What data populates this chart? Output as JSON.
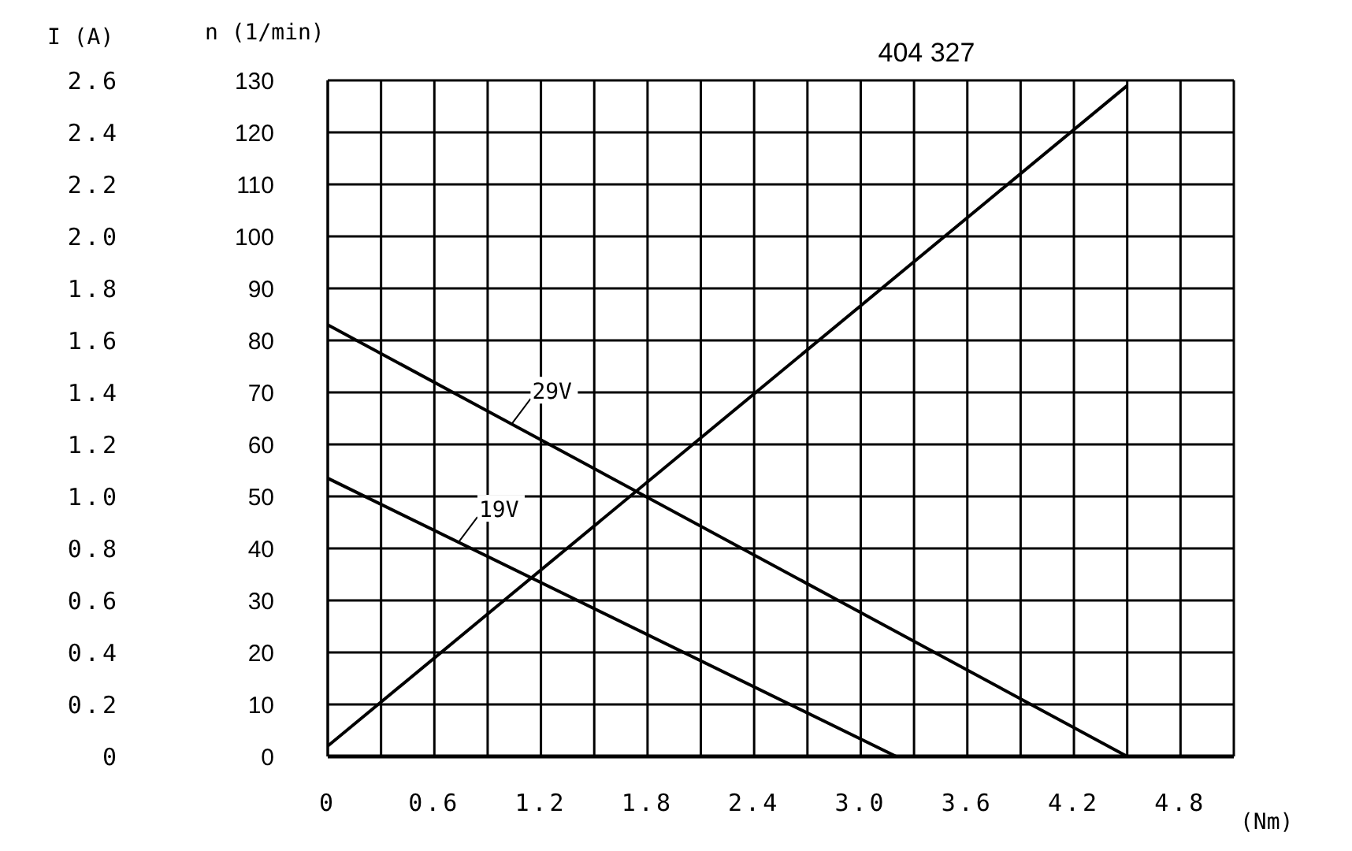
{
  "chart_data": {
    "type": "line",
    "title": "404 327",
    "xlabel": "(Nm)",
    "ylabel": "n (1/min)",
    "y2label": "I (A)",
    "series": [
      {
        "name": "29V",
        "color": "#000000",
        "x": [
          0,
          4.5
        ],
        "values": [
          83,
          0
        ]
      },
      {
        "name": "19V",
        "color": "#000000",
        "x": [
          0,
          3.2
        ],
        "values": [
          53.5,
          0
        ]
      },
      {
        "color": "#000000",
        "axis": "y2",
        "x": [
          0,
          4.5
        ],
        "values": [
          0.04,
          2.58
        ]
      }
    ],
    "xlim": [
      0,
      5.1
    ],
    "xticks": [
      0,
      {
        "value": 0.3,
        "label": null
      },
      0.6,
      {
        "value": 0.9,
        "label": null
      },
      1.2,
      {
        "value": 1.5,
        "label": null
      },
      1.8,
      {
        "value": 2.1,
        "label": null
      },
      2.4,
      {
        "value": 2.7,
        "label": null
      },
      {
        "value": 3,
        "label": "3.0"
      },
      {
        "value": 3.3,
        "label": null
      },
      3.6,
      {
        "value": 3.9,
        "label": null
      },
      4.2,
      {
        "value": 4.5,
        "label": null
      },
      4.8,
      {
        "value": 5.1,
        "label": null
      }
    ],
    "ylim": [
      0,
      130
    ],
    "yticks": [
      0,
      10,
      20,
      30,
      40,
      50,
      60,
      70,
      80,
      90,
      100,
      110,
      120,
      130
    ],
    "y2lim": [
      0,
      2.6
    ],
    "y2ticks": [
      0,
      0.2,
      0.4,
      0.6,
      0.8,
      {
        "value": 1,
        "label": "1.0"
      },
      1.2,
      1.4,
      1.6,
      1.8,
      {
        "value": 2,
        "label": "2.0"
      },
      2.2,
      2.4,
      2.6
    ],
    "grid": true,
    "marker": "none",
    "line_style": "solid"
  }
}
